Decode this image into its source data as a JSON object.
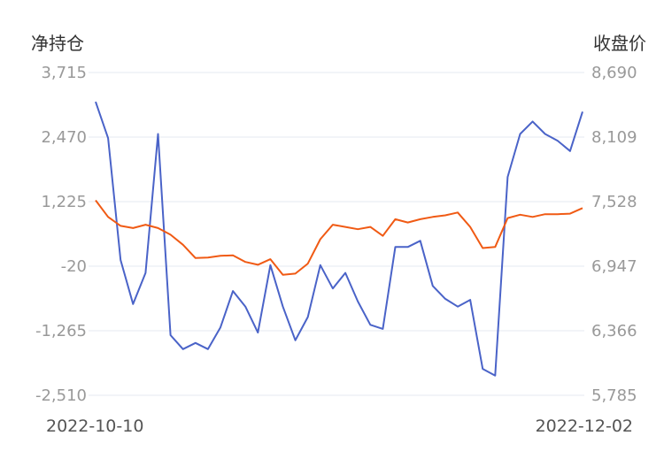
{
  "chart_data": {
    "type": "line",
    "left_axis": {
      "title": "净持仓",
      "ticks": [
        "3,715",
        "2,470",
        "1,225",
        "-20",
        "-1,265",
        "-2,510"
      ],
      "range": [
        -2510,
        3715
      ]
    },
    "right_axis": {
      "title": "收盘价",
      "ticks": [
        "8,690",
        "8,109",
        "7,528",
        "6,947",
        "6,366",
        "5,785"
      ],
      "range": [
        5785,
        8690
      ]
    },
    "x_labels": {
      "start": "2022-10-10",
      "end": "2022-12-02"
    },
    "grid": true,
    "series": [
      {
        "axis": "left",
        "color": "#4a63c8",
        "values": [
          3150,
          2450,
          100,
          -750,
          -150,
          2530,
          -1350,
          -1620,
          -1500,
          -1620,
          -1200,
          -500,
          -800,
          -1300,
          0,
          -800,
          -1450,
          -1000,
          0,
          -450,
          -150,
          -700,
          -1150,
          -1230,
          350,
          350,
          470,
          -400,
          -650,
          -800,
          -670,
          -2000,
          -2130,
          1700,
          2530,
          2770,
          2530,
          2400,
          2200,
          2960
        ]
      },
      {
        "axis": "right",
        "color": "#f05a14",
        "values": [
          7540,
          7390,
          7310,
          7290,
          7320,
          7290,
          7230,
          7140,
          7020,
          7025,
          7040,
          7045,
          6985,
          6960,
          7010,
          6870,
          6880,
          6970,
          7190,
          7320,
          7300,
          7280,
          7300,
          7220,
          7370,
          7340,
          7370,
          7390,
          7405,
          7430,
          7300,
          7110,
          7120,
          7380,
          7410,
          7390,
          7415,
          7415,
          7420,
          7470
        ]
      }
    ]
  }
}
